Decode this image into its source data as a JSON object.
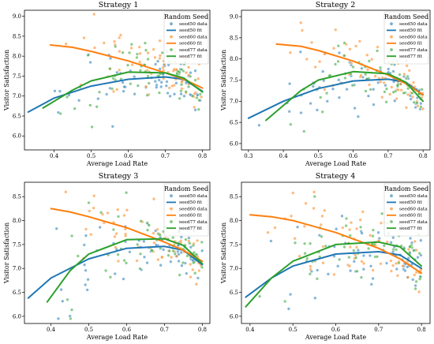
{
  "figure": {
    "legend_title": "Random Seed",
    "xlabel": "Average Load Rate",
    "ylabel": "Visitor Satisfaction"
  },
  "colors": {
    "seed50": "#1f77b4",
    "seed60": "#ff7f0e",
    "seed77": "#2ca02c"
  },
  "chart_data": [
    {
      "type": "scatter",
      "title": "Strategy 1",
      "xlabel": "Average Load Rate",
      "ylabel": "Visitor Satisfaction",
      "xlim": [
        0.32,
        0.82
      ],
      "ylim": [
        5.65,
        9.15
      ],
      "xticks": [
        0.4,
        0.5,
        0.6,
        0.7,
        0.8
      ],
      "yticks": [
        6.0,
        6.5,
        7.0,
        7.5,
        8.0,
        8.5,
        9.0
      ],
      "xtick_labels": [
        "0.4",
        "0.5",
        "0.6",
        "0.7",
        "0.8"
      ],
      "ytick_labels": [
        "6.0",
        "6.5",
        "7.0",
        "7.5",
        "8.0",
        "8.5",
        "9.0"
      ],
      "legend_position": "top-right",
      "grid": false,
      "series": [
        {
          "name": "seed50 data",
          "kind": "scatter",
          "color_key": "seed50"
        },
        {
          "name": "seed50 fit",
          "kind": "line",
          "color_key": "seed50",
          "x": [
            0.33,
            0.4,
            0.5,
            0.6,
            0.7,
            0.75,
            0.8
          ],
          "y": [
            6.6,
            6.95,
            7.25,
            7.42,
            7.48,
            7.42,
            7.12
          ]
        },
        {
          "name": "seed60 data",
          "kind": "scatter",
          "color_key": "seed60"
        },
        {
          "name": "seed60 fit",
          "kind": "line",
          "color_key": "seed60",
          "x": [
            0.39,
            0.45,
            0.5,
            0.6,
            0.7,
            0.75,
            0.8
          ],
          "y": [
            8.28,
            8.22,
            8.12,
            7.88,
            7.58,
            7.42,
            7.2
          ]
        },
        {
          "name": "seed77 data",
          "kind": "scatter",
          "color_key": "seed77"
        },
        {
          "name": "seed77 fit",
          "kind": "line",
          "color_key": "seed77",
          "x": [
            0.37,
            0.45,
            0.5,
            0.6,
            0.7,
            0.75,
            0.8
          ],
          "y": [
            6.7,
            7.15,
            7.38,
            7.6,
            7.58,
            7.45,
            7.1
          ]
        }
      ],
      "point_clouds": {
        "seed50": 65,
        "seed60": 65,
        "seed77": 65
      }
    },
    {
      "type": "scatter",
      "title": "Strategy 2",
      "xlabel": "Average Load Rate",
      "ylabel": "Visitor Satisfaction",
      "xlim": [
        0.28,
        0.82
      ],
      "ylim": [
        5.85,
        9.15
      ],
      "xticks": [
        0.3,
        0.4,
        0.5,
        0.6,
        0.7,
        0.8
      ],
      "yticks": [
        6.0,
        6.5,
        7.0,
        7.5,
        8.0,
        8.5,
        9.0
      ],
      "xtick_labels": [
        "0.3",
        "0.4",
        "0.5",
        "0.6",
        "0.7",
        "0.8"
      ],
      "ytick_labels": [
        "6.0",
        "6.5",
        "7.0",
        "7.5",
        "8.0",
        "8.5",
        "9.0"
      ],
      "legend_position": "top-right",
      "grid": false,
      "series": [
        {
          "name": "seed50 data",
          "kind": "scatter",
          "color_key": "seed50"
        },
        {
          "name": "seed50 fit",
          "kind": "line",
          "color_key": "seed50",
          "x": [
            0.3,
            0.4,
            0.5,
            0.6,
            0.7,
            0.75,
            0.8
          ],
          "y": [
            6.6,
            7.0,
            7.3,
            7.48,
            7.52,
            7.45,
            7.15
          ]
        },
        {
          "name": "seed60 data",
          "kind": "scatter",
          "color_key": "seed60"
        },
        {
          "name": "seed60 fit",
          "kind": "line",
          "color_key": "seed60",
          "x": [
            0.38,
            0.45,
            0.5,
            0.6,
            0.7,
            0.75,
            0.8
          ],
          "y": [
            8.35,
            8.3,
            8.2,
            7.95,
            7.62,
            7.42,
            7.15
          ]
        },
        {
          "name": "seed77 data",
          "kind": "scatter",
          "color_key": "seed77"
        },
        {
          "name": "seed77 fit",
          "kind": "line",
          "color_key": "seed77",
          "x": [
            0.35,
            0.45,
            0.5,
            0.6,
            0.7,
            0.75,
            0.8
          ],
          "y": [
            6.55,
            7.25,
            7.5,
            7.7,
            7.65,
            7.45,
            7.0
          ]
        }
      ],
      "point_clouds": {
        "seed50": 65,
        "seed60": 65,
        "seed77": 65
      }
    },
    {
      "type": "scatter",
      "title": "Strategy 3",
      "xlabel": "Average Load Rate",
      "ylabel": "Visitor Satisfaction",
      "xlim": [
        0.33,
        0.82
      ],
      "ylim": [
        5.85,
        8.8
      ],
      "xticks": [
        0.4,
        0.5,
        0.6,
        0.7,
        0.8
      ],
      "yticks": [
        6.0,
        6.5,
        7.0,
        7.5,
        8.0,
        8.5
      ],
      "xtick_labels": [
        "0.4",
        "0.5",
        "0.6",
        "0.7",
        "0.8"
      ],
      "ytick_labels": [
        "6.0",
        "6.5",
        "7.0",
        "7.5",
        "8.0",
        "8.5"
      ],
      "legend_position": "top-right",
      "grid": false,
      "series": [
        {
          "name": "seed50 data",
          "kind": "scatter",
          "color_key": "seed50"
        },
        {
          "name": "seed50 fit",
          "kind": "line",
          "color_key": "seed50",
          "x": [
            0.34,
            0.4,
            0.5,
            0.6,
            0.7,
            0.75,
            0.8
          ],
          "y": [
            6.38,
            6.8,
            7.2,
            7.42,
            7.46,
            7.38,
            7.08
          ]
        },
        {
          "name": "seed60 data",
          "kind": "scatter",
          "color_key": "seed60"
        },
        {
          "name": "seed60 fit",
          "kind": "line",
          "color_key": "seed60",
          "x": [
            0.4,
            0.45,
            0.5,
            0.6,
            0.7,
            0.75,
            0.8
          ],
          "y": [
            8.25,
            8.18,
            8.08,
            7.85,
            7.55,
            7.38,
            7.15
          ]
        },
        {
          "name": "seed77 data",
          "kind": "scatter",
          "color_key": "seed77"
        },
        {
          "name": "seed77 fit",
          "kind": "line",
          "color_key": "seed77",
          "x": [
            0.39,
            0.45,
            0.5,
            0.6,
            0.7,
            0.75,
            0.8
          ],
          "y": [
            6.3,
            6.95,
            7.3,
            7.6,
            7.62,
            7.48,
            7.1
          ]
        }
      ],
      "point_clouds": {
        "seed50": 65,
        "seed60": 65,
        "seed77": 65
      }
    },
    {
      "type": "scatter",
      "title": "Strategy 4",
      "xlabel": "Average Load Rate",
      "ylabel": "Visitor Satisfaction",
      "xlim": [
        0.38,
        0.82
      ],
      "ylim": [
        5.85,
        8.8
      ],
      "xticks": [
        0.4,
        0.5,
        0.6,
        0.7,
        0.8
      ],
      "yticks": [
        6.0,
        6.5,
        7.0,
        7.5,
        8.0,
        8.5
      ],
      "xtick_labels": [
        "0.4",
        "0.5",
        "0.6",
        "0.7",
        "0.8"
      ],
      "ytick_labels": [
        "6.0",
        "6.5",
        "7.0",
        "7.5",
        "8.0",
        "8.5"
      ],
      "legend_position": "top-right",
      "grid": false,
      "series": [
        {
          "name": "seed50 data",
          "kind": "scatter",
          "color_key": "seed50"
        },
        {
          "name": "seed50 fit",
          "kind": "line",
          "color_key": "seed50",
          "x": [
            0.39,
            0.45,
            0.5,
            0.6,
            0.7,
            0.75,
            0.8
          ],
          "y": [
            6.4,
            6.8,
            7.05,
            7.3,
            7.35,
            7.28,
            7.0
          ]
        },
        {
          "name": "seed60 data",
          "kind": "scatter",
          "color_key": "seed60"
        },
        {
          "name": "seed60 fit",
          "kind": "line",
          "color_key": "seed60",
          "x": [
            0.4,
            0.45,
            0.5,
            0.6,
            0.7,
            0.75,
            0.8
          ],
          "y": [
            8.12,
            8.08,
            8.0,
            7.75,
            7.42,
            7.2,
            6.9
          ]
        },
        {
          "name": "seed77 data",
          "kind": "scatter",
          "color_key": "seed77"
        },
        {
          "name": "seed77 fit",
          "kind": "line",
          "color_key": "seed77",
          "x": [
            0.39,
            0.45,
            0.5,
            0.6,
            0.7,
            0.75,
            0.8
          ],
          "y": [
            6.2,
            6.8,
            7.15,
            7.5,
            7.55,
            7.45,
            7.05
          ]
        }
      ],
      "point_clouds": {
        "seed50": 65,
        "seed60": 65,
        "seed77": 65
      }
    }
  ]
}
